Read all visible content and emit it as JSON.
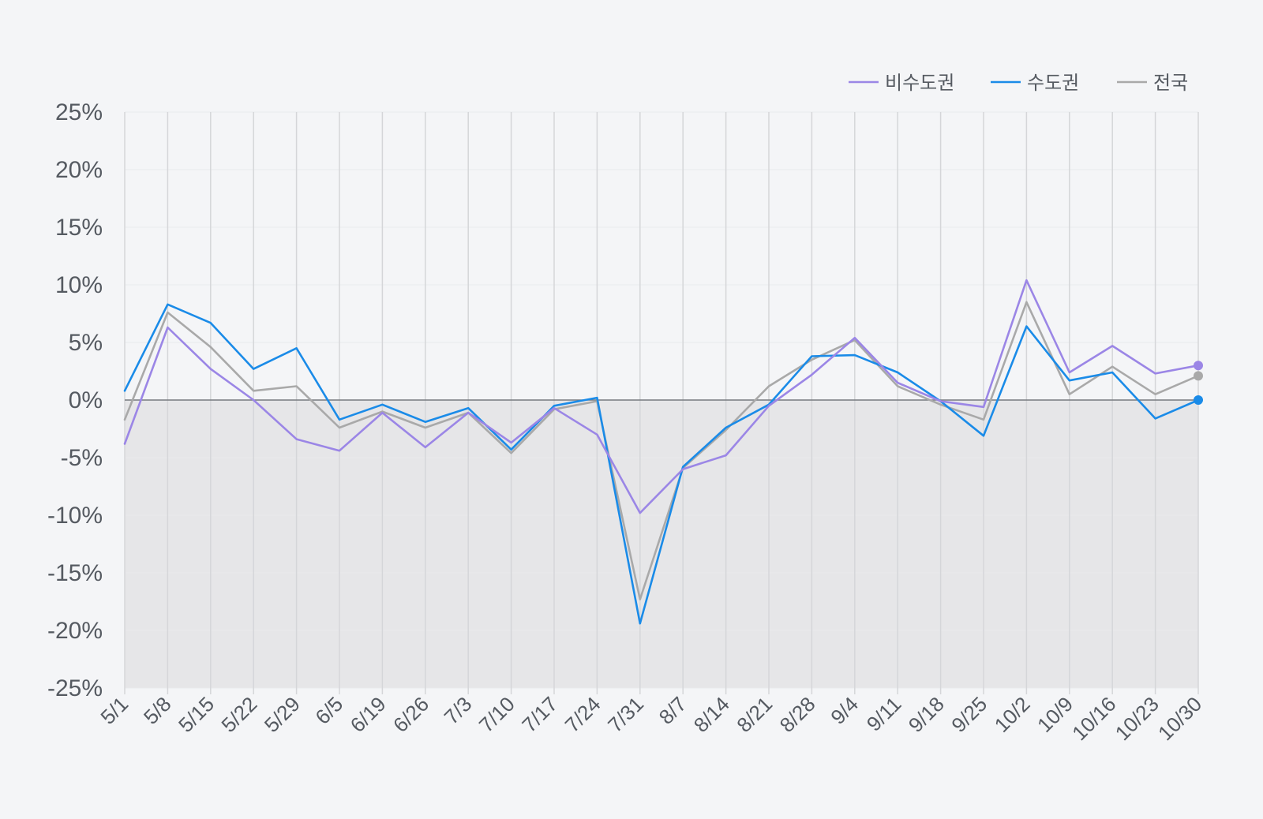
{
  "chart_data": {
    "type": "line",
    "title": "",
    "xlabel": "",
    "ylabel": "",
    "x": [
      "5/1",
      "5/8",
      "5/15",
      "5/22",
      "5/29",
      "6/5",
      "6/19",
      "6/26",
      "7/3",
      "7/10",
      "7/17",
      "7/24",
      "7/31",
      "8/7",
      "8/14",
      "8/21",
      "8/28",
      "9/4",
      "9/11",
      "9/18",
      "9/25",
      "10/2",
      "10/9",
      "10/16",
      "10/23",
      "10/30"
    ],
    "ylim": [
      -25,
      25
    ],
    "yticks": [
      25,
      20,
      15,
      10,
      5,
      0,
      -5,
      -10,
      -15,
      -20,
      -25
    ],
    "ytick_labels": [
      "25%",
      "20%",
      "15%",
      "10%",
      "5%",
      "0%",
      "-5%",
      "-10%",
      "-15%",
      "-20%",
      "-25%"
    ],
    "grid": true,
    "negative_region_shaded": true,
    "legend_position": "top-right",
    "series": [
      {
        "name": "비수도권",
        "color": "#9b86e6",
        "values": [
          -3.8,
          6.3,
          2.7,
          0.0,
          -3.4,
          -4.4,
          -1.1,
          -4.1,
          -1.1,
          -3.7,
          -0.7,
          -3.0,
          -9.8,
          -6.0,
          -4.8,
          -0.5,
          2.2,
          5.4,
          1.5,
          -0.1,
          -0.6,
          10.4,
          2.4,
          4.7,
          2.3,
          3.0
        ]
      },
      {
        "name": "수도권",
        "color": "#1a8be8",
        "values": [
          0.8,
          8.3,
          6.7,
          2.7,
          4.5,
          -1.7,
          -0.4,
          -1.9,
          -0.7,
          -4.3,
          -0.5,
          0.2,
          -19.4,
          -5.8,
          -2.4,
          -0.4,
          3.8,
          3.9,
          2.4,
          -0.1,
          -3.1,
          6.4,
          1.7,
          2.4,
          -1.6,
          0.0
        ]
      },
      {
        "name": "전국",
        "color": "#a9a9a9",
        "values": [
          -1.7,
          7.6,
          4.6,
          0.8,
          1.2,
          -2.4,
          -1.0,
          -2.4,
          -1.1,
          -4.6,
          -0.8,
          -0.1,
          -17.3,
          -5.9,
          -2.6,
          1.2,
          3.5,
          5.2,
          1.2,
          -0.4,
          -1.7,
          8.5,
          0.5,
          2.9,
          0.5,
          2.1
        ]
      }
    ]
  }
}
